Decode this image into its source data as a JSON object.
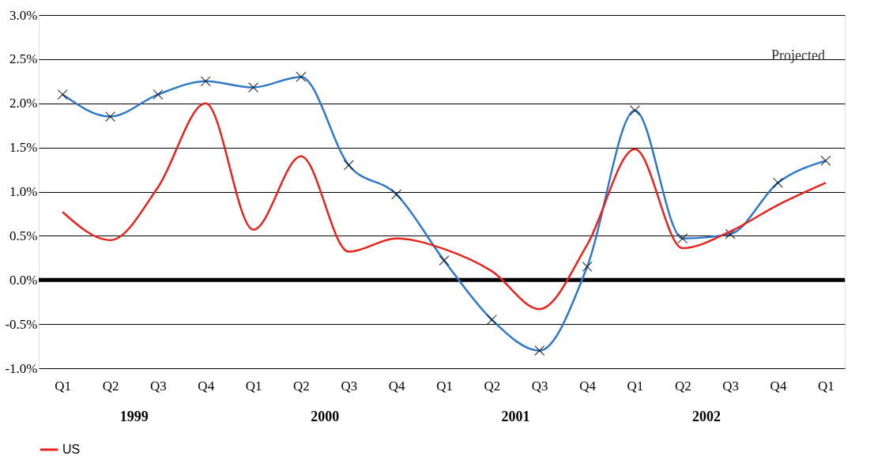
{
  "chart_data": {
    "type": "line",
    "categories": [
      "Q1",
      "Q2",
      "Q3",
      "Q4",
      "Q1",
      "Q2",
      "Q3",
      "Q4",
      "Q1",
      "Q2",
      "Q3",
      "Q4",
      "Q1",
      "Q2",
      "Q3",
      "Q4",
      "Q1"
    ],
    "series": [
      {
        "color": "#2f78c8",
        "marker": "cross",
        "values": [
          2.1,
          1.85,
          2.1,
          2.25,
          2.18,
          2.3,
          1.3,
          0.97,
          0.22,
          -0.45,
          -0.8,
          0.15,
          1.92,
          0.47,
          0.52,
          1.1,
          1.35
        ]
      },
      {
        "name": "US",
        "color": "#e8231e",
        "marker": "none",
        "values": [
          0.77,
          0.45,
          1.05,
          2.0,
          0.57,
          1.4,
          0.32,
          0.47,
          0.35,
          0.1,
          -0.33,
          0.4,
          1.48,
          0.36,
          0.55,
          0.85,
          1.1
        ]
      }
    ],
    "ylim": [
      -1.0,
      3.0
    ],
    "yticks": [
      {
        "value": -1.0,
        "label": "-1.0%"
      },
      {
        "value": -0.5,
        "label": "-0.5%"
      },
      {
        "value": 0.0,
        "label": "0.0%"
      },
      {
        "value": 0.5,
        "label": "0.5%"
      },
      {
        "value": 1.0,
        "label": "1.0%"
      },
      {
        "value": 1.5,
        "label": "1.5%"
      },
      {
        "value": 2.0,
        "label": "2.0%"
      },
      {
        "value": 2.5,
        "label": "2.5%"
      },
      {
        "value": 3.0,
        "label": "3.0%"
      }
    ],
    "ref_lines": [
      {
        "axis": "y",
        "value": 0.0,
        "color": "#000000"
      }
    ],
    "annotations": [
      "1999",
      "2000",
      "2001",
      "2002",
      "Projected"
    ],
    "grid": "y",
    "legend": "bottom",
    "line_style": "solid"
  }
}
